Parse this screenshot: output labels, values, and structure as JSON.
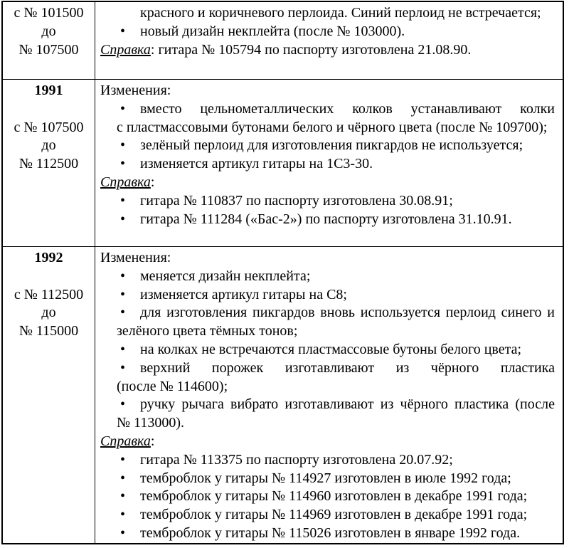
{
  "document": {
    "glyphs": {
      "bullet": "•"
    },
    "colors": {
      "text": "#000000",
      "border": "#000000",
      "background": "#ffffff"
    },
    "rows": [
      {
        "year": null,
        "serial_lines": [
          "с № 101500",
          "до",
          "№ 107500"
        ],
        "blocks": [
          {
            "style": "hang",
            "text": "красного и коричневого перлоида. Синий перлоид не встречается;"
          },
          {
            "style": "bullet",
            "text": "новый дизайн некплейта (после № 103000)."
          },
          {
            "style": "para",
            "label": "Справка",
            "rest": ": гитара № 105794 по паспорту изготовлена 21.08.90."
          }
        ]
      },
      {
        "year": "1991",
        "serial_lines": [
          "с № 107500",
          "до",
          "№ 112500"
        ],
        "blocks": [
          {
            "style": "para",
            "text": "Изменения:"
          },
          {
            "style": "bullet",
            "text": "вместо цельнометаллических колков устанавливают колки с пластмассовыми бутонами белого и чёрного цвета (после № 109700);"
          },
          {
            "style": "bullet",
            "text": "зелёный перлоид для изготовления пикгардов не используется;"
          },
          {
            "style": "bullet",
            "text": "изменяется артикул гитары на 1С3-30."
          },
          {
            "style": "para",
            "label": "Справка",
            "rest": ":"
          },
          {
            "style": "bullet",
            "text": "гитара № 110837 по паспорту изготовлена 30.08.91;"
          },
          {
            "style": "bullet",
            "text": "гитара № 111284 («Бас-2») по паспорту изготовлена 31.10.91."
          }
        ]
      },
      {
        "year": "1992",
        "serial_lines": [
          "с № 112500",
          "до",
          "№ 115000"
        ],
        "blocks": [
          {
            "style": "para",
            "text": "Изменения:"
          },
          {
            "style": "bullet",
            "text": "меняется дизайн некплейта;"
          },
          {
            "style": "bullet",
            "text": "изменяется артикул гитары на С8;"
          },
          {
            "style": "bullet",
            "text": "для изготовления пикгардов вновь используется перлоид синего и зелёного цвета тёмных тонов;"
          },
          {
            "style": "bullet",
            "text": "на колках не встречаются пластмассовые бутоны белого цвета;"
          },
          {
            "style": "bullet",
            "text": "верхний порожек изготавливают из чёрного пластика (после № 114600);"
          },
          {
            "style": "bullet",
            "text": "ручку рычага вибрато изготавливают из чёрного пластика (после № 113000)."
          },
          {
            "style": "para",
            "label": "Справка",
            "rest": ":"
          },
          {
            "style": "bullet",
            "text": "гитара № 113375 по паспорту изготовлена 20.07.92;"
          },
          {
            "style": "bullet",
            "text": "темброблок у гитары № 114927 изготовлен в июле 1992 года;"
          },
          {
            "style": "bullet",
            "text": "темброблок у гитары № 114960 изготовлен в декабре 1991 года;"
          },
          {
            "style": "bullet",
            "text": "темброблок у гитары № 114969 изготовлен в декабре 1991 года;"
          },
          {
            "style": "bullet",
            "text": "темброблок у гитары № 115026 изготовлен в январе 1992 года."
          }
        ]
      }
    ]
  }
}
